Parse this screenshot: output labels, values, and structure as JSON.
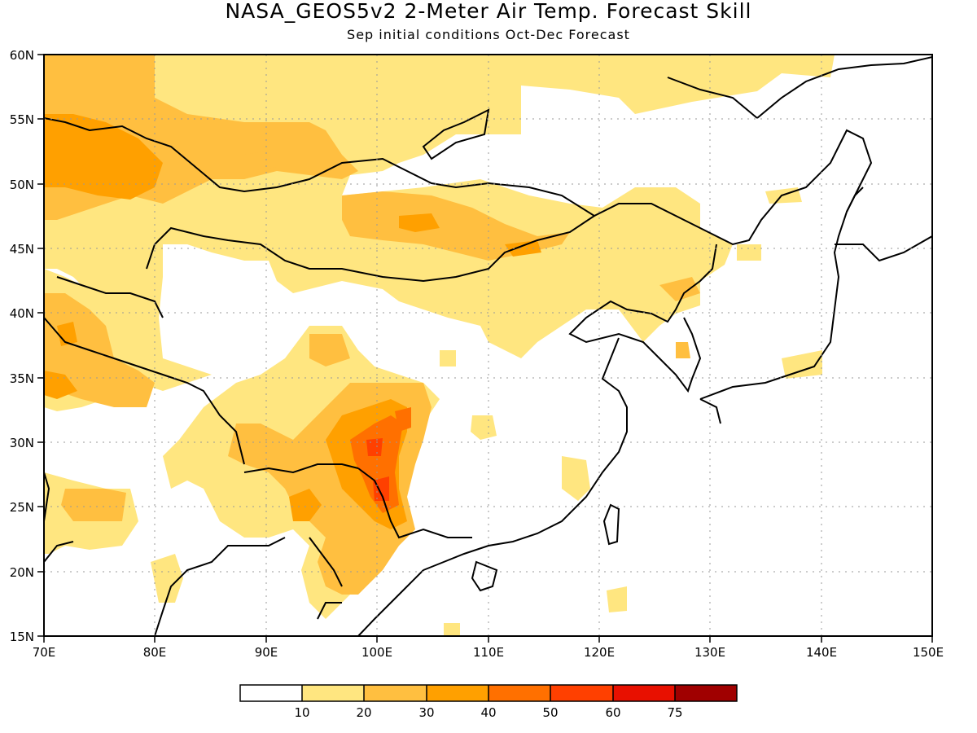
{
  "title": "NASA_GEOS5v2 2-Meter Air Temp. Forecast Skill",
  "subtitle": "Sep initial conditions  Oct-Dec Forecast",
  "map": {
    "lon_range": [
      70,
      150
    ],
    "lat_range": [
      15,
      60
    ],
    "lon_ticks": [
      "70E",
      "80E",
      "90E",
      "100E",
      "110E",
      "120E",
      "130E",
      "140E",
      "150E"
    ],
    "lat_ticks": [
      "15N",
      "20N",
      "25N",
      "30N",
      "35N",
      "40N",
      "45N",
      "50N",
      "55N",
      "60N"
    ],
    "grid": true
  },
  "colorbar": {
    "labels": [
      "10",
      "20",
      "30",
      "40",
      "50",
      "60",
      "75"
    ],
    "colors": [
      "#ffffff",
      "#ffe680",
      "#ffbf40",
      "#ffa000",
      "#ff7000",
      "#ff4000",
      "#e81000",
      "#a00000"
    ]
  }
}
